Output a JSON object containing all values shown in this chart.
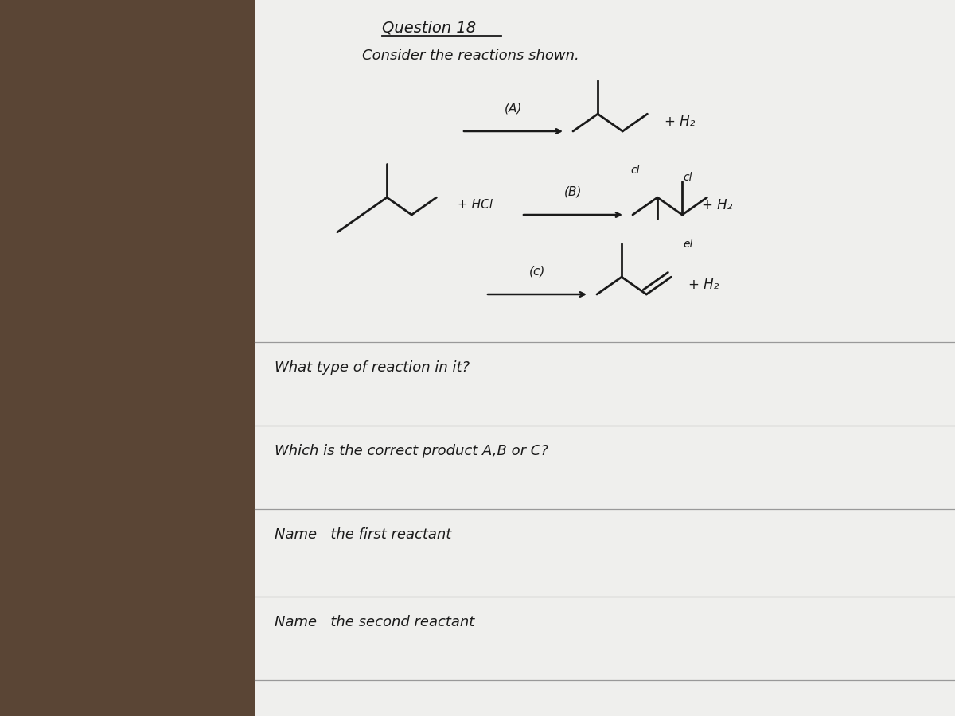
{
  "bg_color": "#5a4535",
  "paper_color": "#efefed",
  "title1": "Question 18",
  "title2": "Consider the reactions shown.",
  "question1": "What type of reaction in it?",
  "question2": "Which is the correct product A,B or C?",
  "question3": "Name   the first reactant",
  "question4": "Name   the second reactant",
  "ink": "#1a1a1a"
}
